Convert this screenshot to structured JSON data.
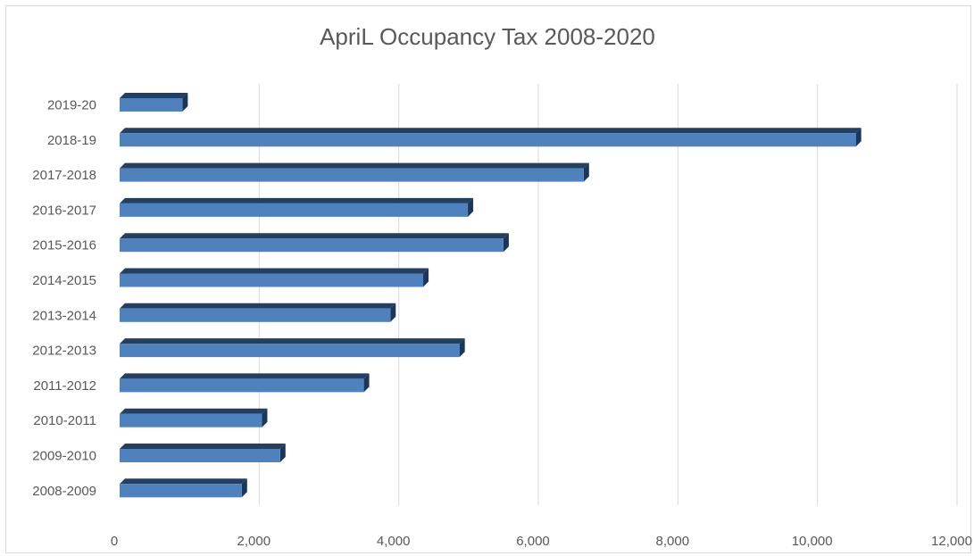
{
  "chart_data": {
    "type": "bar",
    "orientation": "horizontal",
    "style": "3d",
    "title": "ApriL Occupancy Tax 2008-2020",
    "categories": [
      "2019-20",
      "2018-19",
      "2017-2018",
      "2016-2017",
      "2015-2016",
      "2014-2015",
      "2013-2014",
      "2012-2013",
      "2011-2012",
      "2010-2011",
      "2009-2010",
      "2008-2009"
    ],
    "values": [
      900,
      10550,
      6650,
      4990,
      5500,
      4350,
      3880,
      4870,
      3500,
      2040,
      2300,
      1750
    ],
    "xlim": [
      0,
      12000
    ],
    "xticks": [
      0,
      2000,
      4000,
      6000,
      8000,
      10000,
      12000
    ],
    "xtick_labels": [
      "0",
      "2,000",
      "4,000",
      "6,000",
      "8,000",
      "10,000",
      "12,000"
    ],
    "grid": true,
    "legend": "none",
    "colors": {
      "bar_front": "#4f81bd",
      "bar_top": "#243f60",
      "bar_side": "#1f3558",
      "gridline": "#d9d9d9",
      "text": "#595959"
    }
  }
}
